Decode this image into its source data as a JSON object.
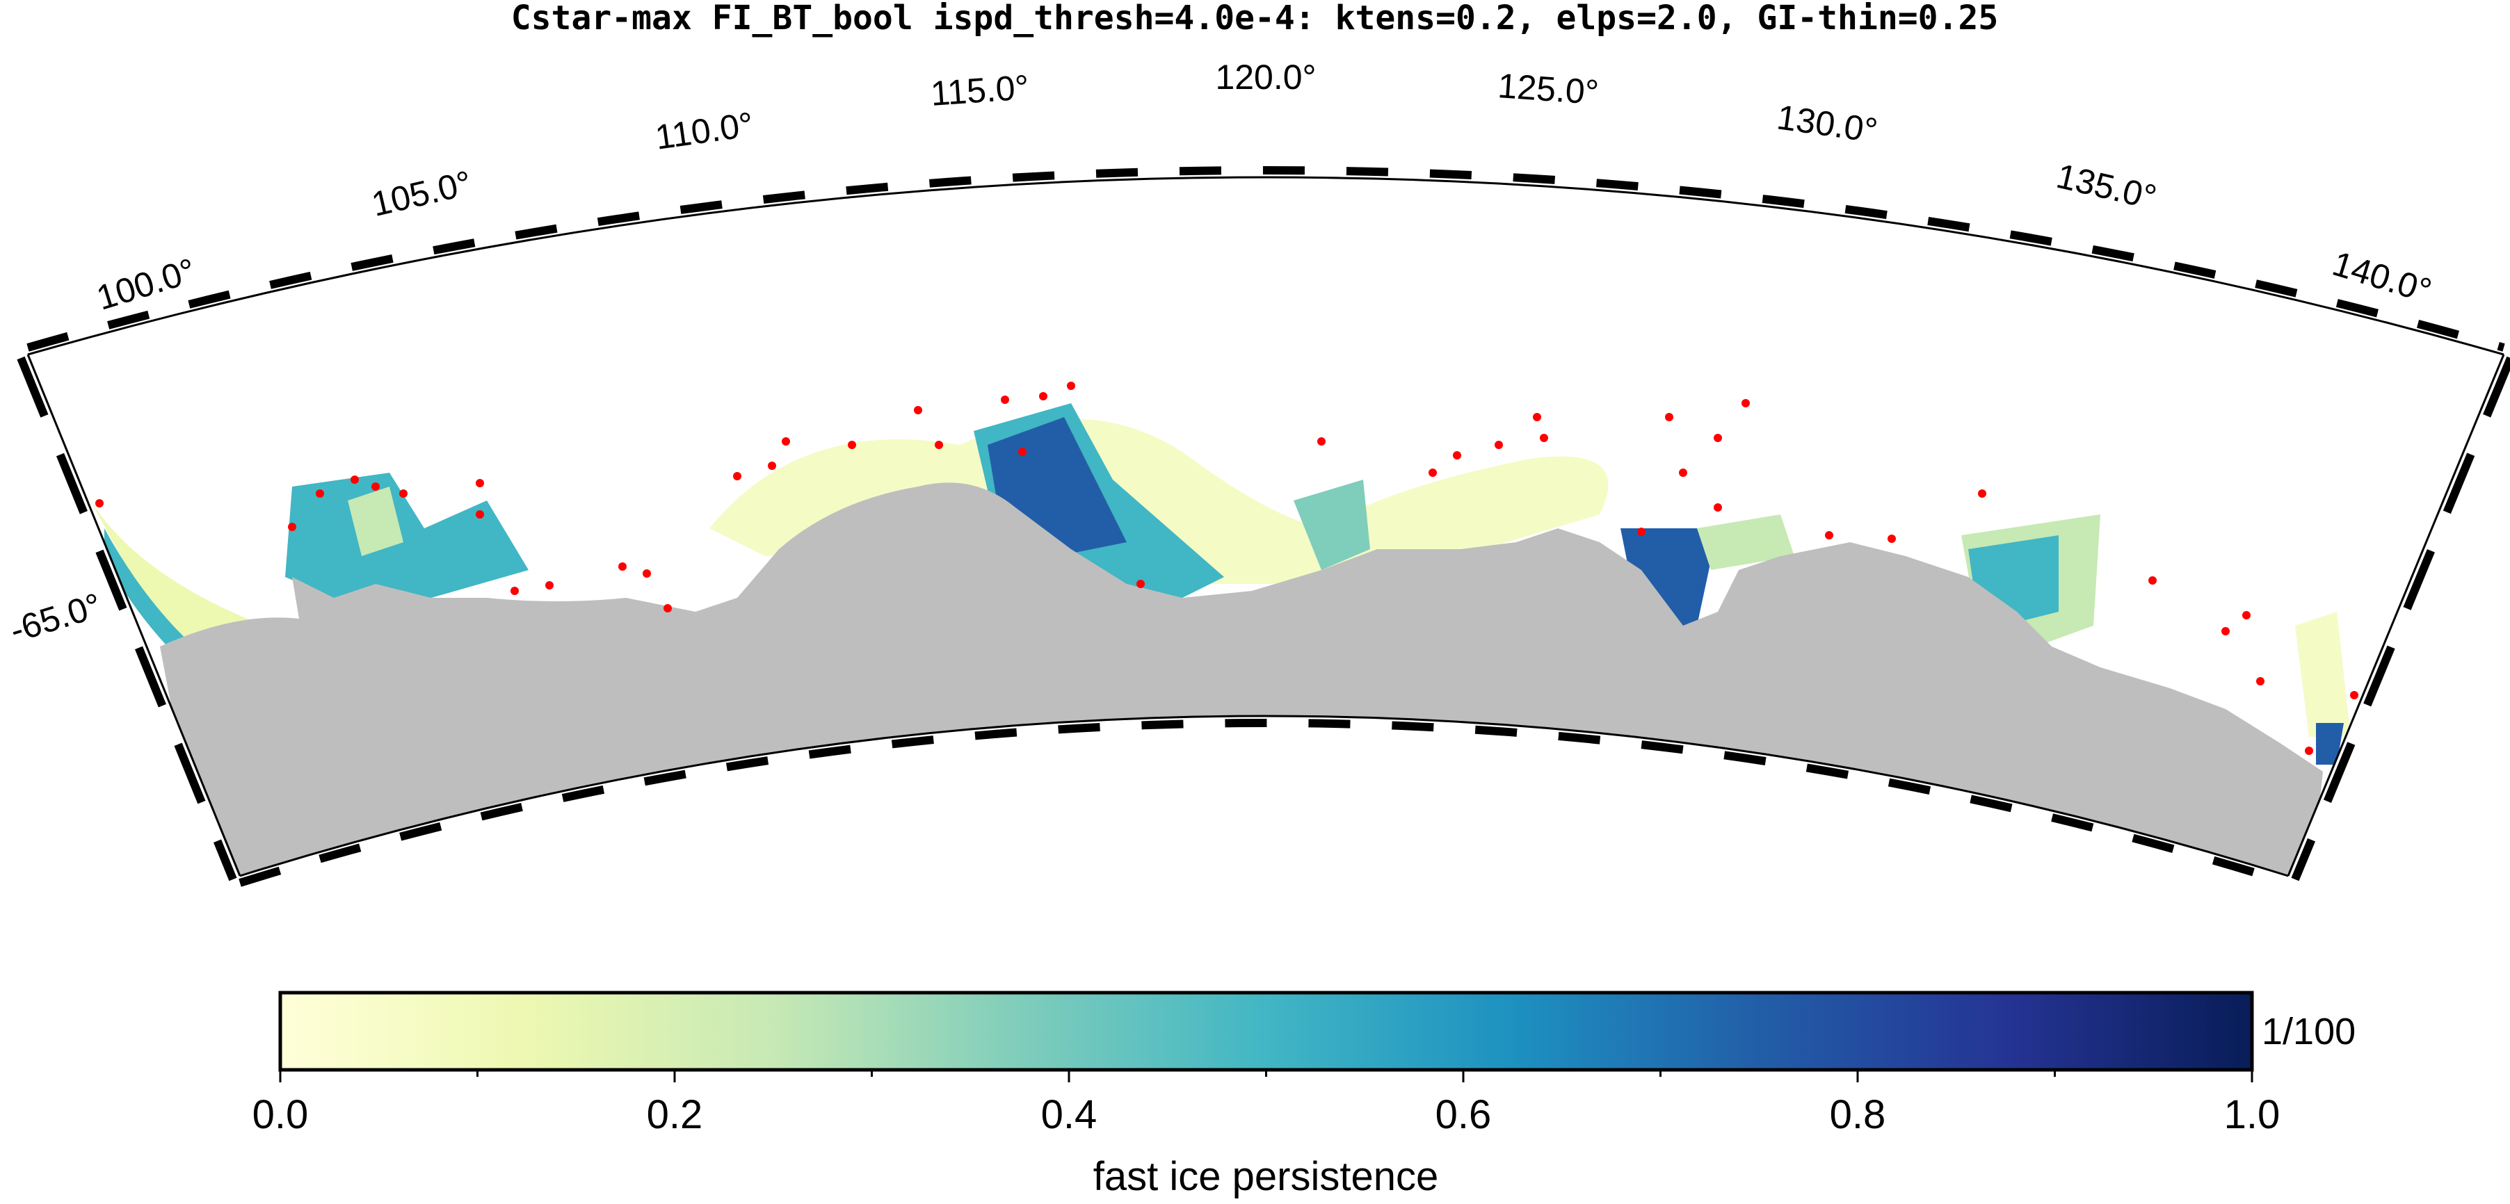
{
  "title": "Cstar-max FI_BT_bool ispd_thresh=4.0e-4: ktens=0.2, elps=2.0, GI-thin=0.25",
  "map": {
    "projection": "polar-stereographic-sector",
    "lon_range": [
      98,
      142
    ],
    "lat_label": "-65.0°",
    "lon_labels": [
      "100.0°",
      "105.0°",
      "110.0°",
      "115.0°",
      "120.0°",
      "125.0°",
      "130.0°",
      "135.0°",
      "140.0°"
    ],
    "land_color": "#bebebe",
    "grounded_iceberg_color": "#ff0000"
  },
  "colorbar": {
    "label": "fast ice persistence",
    "unit_label": "1/100",
    "ticks": [
      "0.0",
      "0.2",
      "0.4",
      "0.6",
      "0.8",
      "1.0"
    ],
    "colormap": "YlGnBu",
    "range": [
      0,
      1
    ]
  }
}
